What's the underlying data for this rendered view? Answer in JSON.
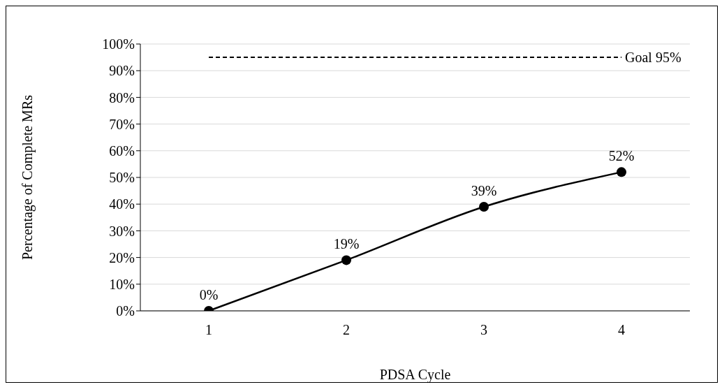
{
  "chart_data": {
    "type": "line",
    "xlabel": "PDSA Cycle",
    "ylabel": "Percentage of Complete  MRs",
    "categories": [
      "1",
      "2",
      "3",
      "4"
    ],
    "series": [
      {
        "color": "#000000",
        "values": [
          0,
          19,
          39,
          52
        ],
        "value_labels": [
          "0%",
          "19%",
          "39%",
          "52%"
        ]
      }
    ],
    "ylim": [
      0,
      100
    ],
    "yticks": [
      {
        "value": 0,
        "label": "0%"
      },
      {
        "value": 10,
        "label": "10%"
      },
      {
        "value": 20,
        "label": "20%"
      },
      {
        "value": 30,
        "label": "30%"
      },
      {
        "value": 40,
        "label": "40%"
      },
      {
        "value": 50,
        "label": "50%"
      },
      {
        "value": 60,
        "label": "60%"
      },
      {
        "value": 70,
        "label": "70%"
      },
      {
        "value": 80,
        "label": "80%"
      },
      {
        "value": 90,
        "label": "90%"
      },
      {
        "value": 100,
        "label": "100%"
      }
    ],
    "ref_lines": [
      {
        "axis": "y",
        "value": 95,
        "label": "Goal 95%",
        "color": "#000000",
        "line_style": "dashed"
      }
    ],
    "grid": "y",
    "marker": "circle",
    "line_style": "solid"
  }
}
